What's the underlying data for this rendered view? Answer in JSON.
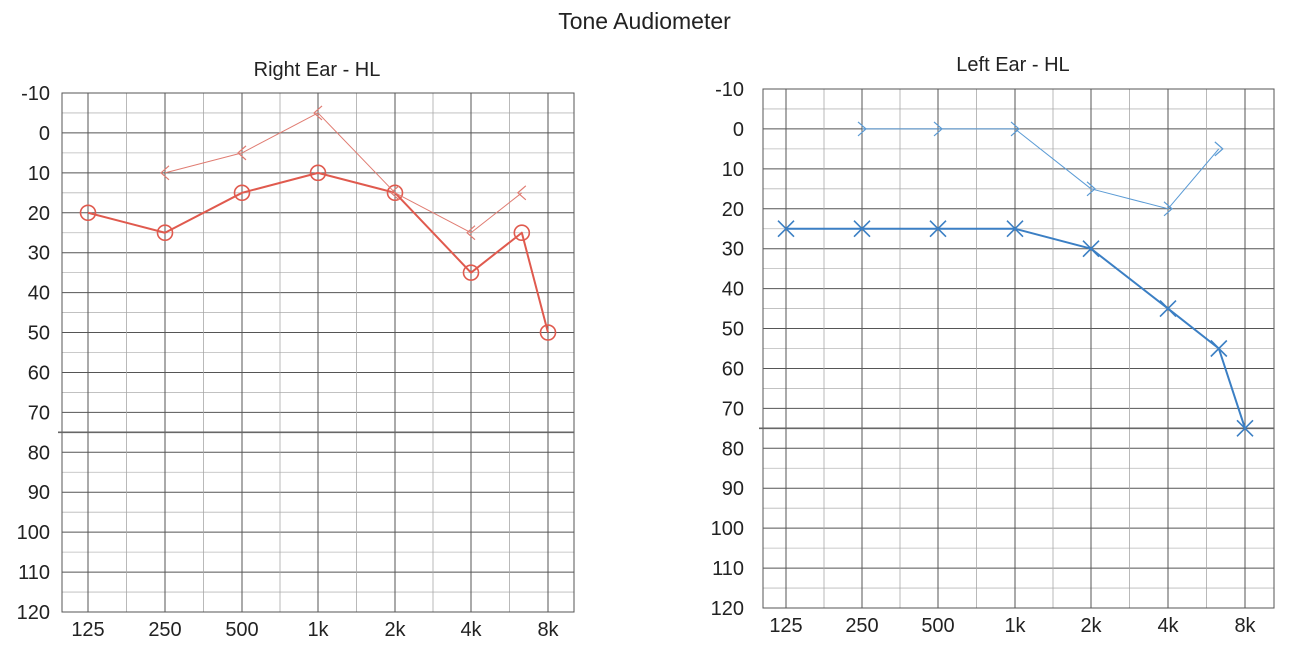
{
  "title": "Tone Audiometer",
  "chart_data": [
    {
      "type": "line",
      "title": "Right Ear - HL",
      "x_tick_labels": [
        "125",
        "250",
        "500",
        "1k",
        "2k",
        "4k",
        "8k"
      ],
      "y_tick_labels": [
        "-10",
        "0",
        "10",
        "20",
        "30",
        "40",
        "50",
        "60",
        "70",
        "80",
        "90",
        "100",
        "110",
        "120"
      ],
      "ylim": [
        -10,
        120
      ],
      "y_inverted": true,
      "grid": true,
      "series": [
        {
          "symbol": "circle",
          "color": "#e05a4e",
          "line_width": 2,
          "x": [
            "125",
            "250",
            "500",
            "1k",
            "2k",
            "4k",
            "6k",
            "8k"
          ],
          "values": [
            20,
            25,
            15,
            10,
            15,
            35,
            25,
            50
          ]
        },
        {
          "symbol": "less-than",
          "color": "#e07c72",
          "line_width": 1,
          "x": [
            "250",
            "500",
            "1k",
            "2k",
            "4k",
            "6k"
          ],
          "values": [
            10,
            5,
            -5,
            15,
            25,
            15
          ]
        }
      ]
    },
    {
      "type": "line",
      "title": "Left Ear - HL",
      "x_tick_labels": [
        "125",
        "250",
        "500",
        "1k",
        "2k",
        "4k",
        "8k"
      ],
      "y_tick_labels": [
        "-10",
        "0",
        "10",
        "20",
        "30",
        "40",
        "50",
        "60",
        "70",
        "80",
        "90",
        "100",
        "110",
        "120"
      ],
      "ylim": [
        -10,
        120
      ],
      "y_inverted": true,
      "grid": true,
      "series": [
        {
          "symbol": "x",
          "color": "#3b7fc4",
          "line_width": 2,
          "x": [
            "125",
            "250",
            "500",
            "1k",
            "2k",
            "4k",
            "6k",
            "8k"
          ],
          "values": [
            25,
            25,
            25,
            25,
            30,
            45,
            55,
            75
          ]
        },
        {
          "symbol": "greater-than",
          "color": "#5b9bd5",
          "line_width": 1,
          "x": [
            "250",
            "500",
            "1k",
            "2k",
            "4k",
            "6k"
          ],
          "values": [
            0,
            0,
            0,
            15,
            20,
            5
          ]
        }
      ]
    }
  ]
}
